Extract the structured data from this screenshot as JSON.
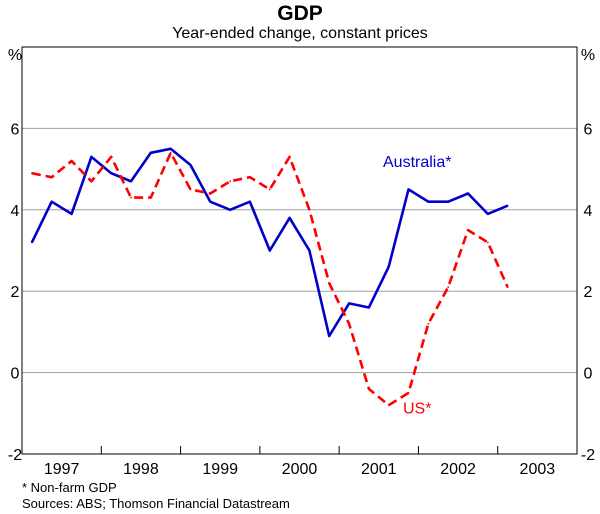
{
  "chart_data": {
    "type": "line",
    "title": "GDP",
    "subtitle": "Year-ended change, constant prices",
    "ylabel_left": "%",
    "ylabel_right": "%",
    "ylim": [
      -2,
      8
    ],
    "yticks": [
      -2,
      0,
      2,
      4,
      6
    ],
    "xlim": [
      1996.625,
      2003.625
    ],
    "xticks": [
      {
        "label": "1997",
        "x": 1997.125
      },
      {
        "label": "1998",
        "x": 1998.125
      },
      {
        "label": "1999",
        "x": 1999.125
      },
      {
        "label": "2000",
        "x": 2000.125
      },
      {
        "label": "2001",
        "x": 2001.125
      },
      {
        "label": "2002",
        "x": 2002.125
      },
      {
        "label": "2003",
        "x": 2003.125
      }
    ],
    "x": [
      1996.75,
      1997.0,
      1997.25,
      1997.5,
      1997.75,
      1998.0,
      1998.25,
      1998.5,
      1998.75,
      1999.0,
      1999.25,
      1999.5,
      1999.75,
      2000.0,
      2000.25,
      2000.5,
      2000.75,
      2001.0,
      2001.25,
      2001.5,
      2001.75,
      2002.0,
      2002.25,
      2002.5,
      2002.75
    ],
    "series": [
      {
        "name": "Australia*",
        "color": "#0000cc",
        "style": "solid",
        "values": [
          3.2,
          4.2,
          3.9,
          5.3,
          4.9,
          4.7,
          5.4,
          5.5,
          5.1,
          4.2,
          4.0,
          4.2,
          3.0,
          3.8,
          3.0,
          0.9,
          1.7,
          1.6,
          2.6,
          4.5,
          4.2,
          4.2,
          4.4,
          3.9,
          4.1
        ]
      },
      {
        "name": "US*",
        "color": "#ff0000",
        "style": "dashed",
        "values": [
          4.9,
          4.8,
          5.2,
          4.7,
          5.3,
          4.3,
          4.3,
          5.4,
          4.5,
          4.4,
          4.7,
          4.8,
          4.5,
          5.3,
          4.0,
          2.2,
          1.2,
          -0.4,
          -0.8,
          -0.5,
          1.2,
          2.1,
          3.5,
          3.2,
          2.1
        ]
      }
    ],
    "grid": true
  },
  "footnotes": {
    "note": "* Non-farm GDP",
    "sources": "Sources: ABS; Thomson Financial Datastream"
  }
}
